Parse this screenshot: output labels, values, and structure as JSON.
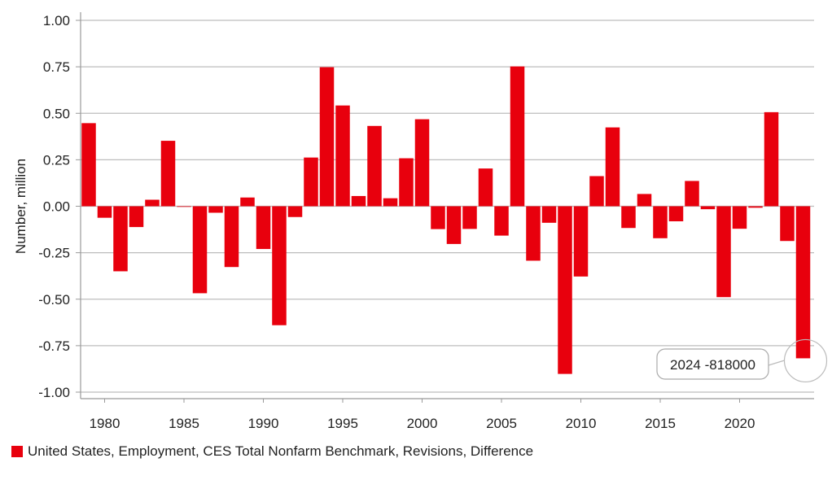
{
  "chart_data": {
    "type": "bar",
    "title": "",
    "xlabel": "",
    "ylabel": "Number, million",
    "ylim": [
      -1.0,
      1.0
    ],
    "yticks": [
      "1.00",
      "0.75",
      "0.50",
      "0.25",
      "0.00",
      "-0.25",
      "-0.50",
      "-0.75",
      "-1.00"
    ],
    "ytick_values": [
      1.0,
      0.75,
      0.5,
      0.25,
      0.0,
      -0.25,
      -0.5,
      -0.75,
      -1.0
    ],
    "xticks": [
      "1980",
      "1985",
      "1990",
      "1995",
      "2000",
      "2005",
      "2010",
      "2015",
      "2020"
    ],
    "grid": true,
    "series_color": "#e8000d",
    "categories": [
      1979,
      1980,
      1981,
      1982,
      1983,
      1984,
      1985,
      1986,
      1987,
      1988,
      1989,
      1990,
      1991,
      1992,
      1993,
      1994,
      1995,
      1996,
      1997,
      1998,
      1999,
      2000,
      2001,
      2002,
      2003,
      2004,
      2005,
      2006,
      2007,
      2008,
      2009,
      2010,
      2011,
      2012,
      2013,
      2014,
      2015,
      2016,
      2017,
      2018,
      2019,
      2020,
      2021,
      2022,
      2023,
      2024
    ],
    "series": [
      {
        "name": "United States, Employment, CES Total Nonfarm Benchmark, Revisions, Difference",
        "values": [
          0.447,
          -0.062,
          -0.35,
          -0.112,
          0.035,
          0.352,
          -0.003,
          -0.468,
          -0.035,
          -0.327,
          0.047,
          -0.23,
          -0.64,
          -0.058,
          0.262,
          0.748,
          0.542,
          0.055,
          0.432,
          0.043,
          0.258,
          0.468,
          -0.123,
          -0.203,
          -0.122,
          0.203,
          -0.158,
          0.752,
          -0.293,
          -0.089,
          -0.902,
          -0.378,
          0.162,
          0.424,
          -0.117,
          0.066,
          -0.172,
          -0.081,
          0.136,
          -0.016,
          -0.489,
          -0.121,
          -0.008,
          0.506,
          -0.187,
          -0.818
        ]
      }
    ],
    "annotation": {
      "text": "2024 -818000"
    }
  }
}
